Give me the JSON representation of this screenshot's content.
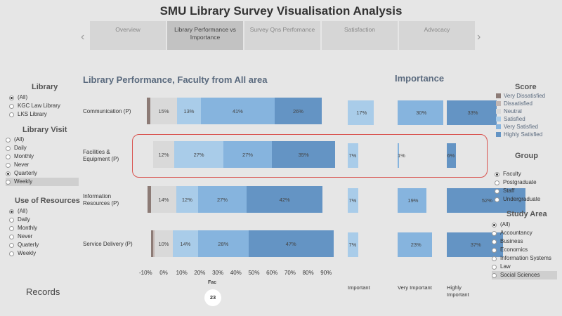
{
  "title": "SMU Library Survey Visualisation Analysis",
  "tabs": [
    {
      "label": "Overview"
    },
    {
      "label": "Library Performance vs Importance",
      "active": true
    },
    {
      "label": "Survey Qns  Perfomance"
    },
    {
      "label": "Satisfaction"
    },
    {
      "label": "Advocacy"
    }
  ],
  "nav": {
    "prev": "‹",
    "next": "›"
  },
  "filters": {
    "library": {
      "title": "Library",
      "options": [
        "(All)",
        "KGC Law Library",
        "LKS Library"
      ],
      "selected": "(All)"
    },
    "library_visit": {
      "title": "Library Visit",
      "options": [
        "(All)",
        "Daily",
        "Monthly",
        "Never",
        "Quarterly",
        "Weekly"
      ],
      "selected": "Quarterly",
      "highlighted": "Weekly"
    },
    "use_of_resources": {
      "title": "Use of Resources",
      "options": [
        "(All)",
        "Daily",
        "Monthly",
        "Never",
        "Quaterly",
        "Weekly"
      ],
      "selected": "(All)"
    },
    "group": {
      "title": "Group",
      "options": [
        "Faculty",
        "Postgraduate",
        "Staff",
        "Undergraduate"
      ],
      "selected": "Faculty"
    },
    "study_area": {
      "title": "Study Area",
      "options": [
        "(All)",
        "Accountancy",
        "Business",
        "Economics",
        "Information Systems",
        "Law",
        "Social Sciences"
      ],
      "selected": "(All)",
      "highlighted": "Social Sciences"
    }
  },
  "score_legend": {
    "title": "Score",
    "items": [
      {
        "label": "Very Dissatisfied",
        "color": "#8c7b76"
      },
      {
        "label": "Dissatisfied",
        "color": "#c3b6b2"
      },
      {
        "label": "Neutral",
        "color": "#d9d9d9"
      },
      {
        "label": "Satisfied",
        "color": "#a9cce9"
      },
      {
        "label": "Very Satisfied",
        "color": "#86b4de"
      },
      {
        "label": "Highly Satisfied",
        "color": "#6494c4"
      }
    ]
  },
  "records_label": "Records",
  "fac": {
    "label": "Fac",
    "count": "23"
  },
  "chart_data": [
    {
      "type": "bar",
      "title": "Library Performance, Faculty from All area",
      "orientation": "horizontal-diverging-stacked",
      "categories": [
        "Communication (P)",
        "Facilities & Equipment (P)",
        "Information Resources (P)",
        "Service Delivery (P)"
      ],
      "xlim": [
        -10,
        90
      ],
      "xticks": [
        "-10%",
        "0%",
        "10%",
        "20%",
        "30%",
        "40%",
        "50%",
        "60%",
        "70%",
        "80%",
        "90%"
      ],
      "series": [
        {
          "name": "Very Dissatisfied",
          "values": [
            2,
            0,
            2,
            1
          ]
        },
        {
          "name": "Dissatisfied",
          "values": [
            0,
            0,
            0,
            1
          ]
        },
        {
          "name": "Neutral",
          "values": [
            15,
            12,
            14,
            10
          ]
        },
        {
          "name": "Satisfied",
          "values": [
            13,
            27,
            12,
            14
          ]
        },
        {
          "name": "Very Satisfied",
          "values": [
            41,
            27,
            27,
            28
          ]
        },
        {
          "name": "Highly Satisfied",
          "values": [
            26,
            35,
            42,
            47
          ]
        }
      ],
      "labels_shown": [
        [
          "",
          "",
          "15%",
          "13%",
          "41%",
          "26%"
        ],
        [
          "",
          "",
          "12%",
          "27%",
          "27%",
          "35%"
        ],
        [
          "",
          "",
          "14%",
          "12%",
          "27%",
          "42%"
        ],
        [
          "",
          "",
          "10%",
          "14%",
          "28%",
          "47%"
        ]
      ]
    },
    {
      "type": "bar",
      "title": "Importance",
      "columns": [
        "Important",
        "Very Important",
        "Highly Important"
      ],
      "categories": [
        "Communication (P)",
        "Facilities & Equipment (P)",
        "Information Resources (P)",
        "Service Delivery (P)"
      ],
      "values": [
        [
          17,
          30,
          33
        ],
        [
          7,
          1,
          6
        ],
        [
          7,
          19,
          52
        ],
        [
          7,
          23,
          37
        ]
      ],
      "colors": [
        "#a9cce9",
        "#86b4de",
        "#6494c4"
      ]
    }
  ],
  "highlight_note": "Facilities & Equipment (P)"
}
